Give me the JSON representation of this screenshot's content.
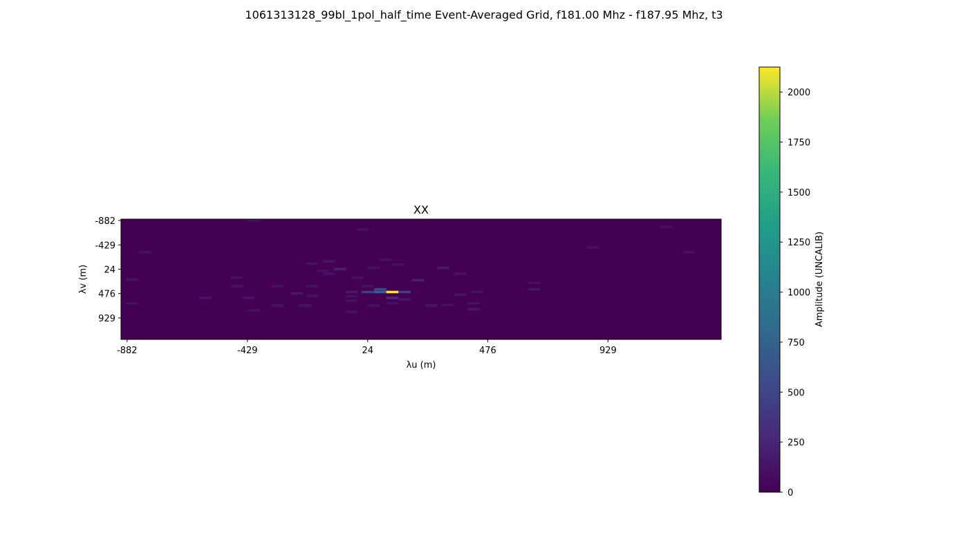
{
  "figure": {
    "title": "1061313128_99bl_1pol_half_time Event-Averaged Grid, f181.00 Mhz - f187.95 Mhz, t3"
  },
  "chart_data": {
    "type": "heatmap",
    "panel_title": "XX",
    "xlabel": "λu (m)",
    "ylabel": "λv (m)",
    "x_ticks": [
      "-882",
      "-429",
      "24",
      "476",
      "929"
    ],
    "x_tick_values": [
      -882,
      -429,
      24,
      476,
      929
    ],
    "y_ticks": [
      "-882",
      "-429",
      "24",
      "476",
      "929"
    ],
    "y_tick_values": [
      -882,
      -429,
      24,
      476,
      929
    ],
    "xlim": [
      -905,
      1355
    ],
    "ylim": [
      -882,
      1354
    ],
    "y_inverted": true,
    "background_value": 0,
    "colormap": "viridis",
    "colorbar": {
      "label": "Amplitude (UNCALIB)",
      "min": 0,
      "max": 2125,
      "ticks": [
        "0",
        "250",
        "500",
        "750",
        "1000",
        "1250",
        "1500",
        "1750",
        "2000"
      ],
      "tick_values": [
        0,
        250,
        500,
        750,
        1000,
        1250,
        1500,
        1750,
        2000
      ]
    },
    "cells": [
      {
        "u": -427,
        "v": -882,
        "w": 46,
        "h": 46,
        "value": 110
      },
      {
        "u": -17,
        "v": -710,
        "w": 46,
        "h": 46,
        "value": 110
      },
      {
        "u": 1125,
        "v": -760,
        "w": 46,
        "h": 46,
        "value": 110
      },
      {
        "u": -838,
        "v": -290,
        "w": 46,
        "h": 46,
        "value": 110
      },
      {
        "u": 849,
        "v": -380,
        "w": 46,
        "h": 46,
        "value": 110
      },
      {
        "u": 1211,
        "v": -290,
        "w": 46,
        "h": 46,
        "value": 110
      },
      {
        "u": -209,
        "v": -80,
        "w": 46,
        "h": 46,
        "value": 120
      },
      {
        "u": -145,
        "v": -120,
        "w": 46,
        "h": 46,
        "value": 130
      },
      {
        "u": -103,
        "v": 24,
        "w": 46,
        "h": 46,
        "value": 220
      },
      {
        "u": -168,
        "v": 60,
        "w": 46,
        "h": 46,
        "value": 110
      },
      {
        "u": -145,
        "v": 110,
        "w": 46,
        "h": 46,
        "value": 110
      },
      {
        "u": 24,
        "v": 0,
        "w": 46,
        "h": 46,
        "value": 120
      },
      {
        "u": 69,
        "v": -150,
        "w": 46,
        "h": 46,
        "value": 110
      },
      {
        "u": 115,
        "v": -60,
        "w": 46,
        "h": 46,
        "value": 110
      },
      {
        "u": 285,
        "v": 0,
        "w": 46,
        "h": 46,
        "value": 200
      },
      {
        "u": 350,
        "v": 110,
        "w": 46,
        "h": 46,
        "value": 120
      },
      {
        "u": -888,
        "v": 220,
        "w": 46,
        "h": 46,
        "value": 110
      },
      {
        "u": -493,
        "v": 180,
        "w": 46,
        "h": 46,
        "value": 110
      },
      {
        "u": -38,
        "v": 180,
        "w": 46,
        "h": 46,
        "value": 110
      },
      {
        "u": 190,
        "v": 230,
        "w": 46,
        "h": 46,
        "value": 220
      },
      {
        "u": -211,
        "v": 340,
        "w": 46,
        "h": 46,
        "value": 110
      },
      {
        "u": -338,
        "v": 340,
        "w": 46,
        "h": 46,
        "value": 110
      },
      {
        "u": -490,
        "v": 340,
        "w": 46,
        "h": 46,
        "value": 110
      },
      {
        "u": 627,
        "v": 280,
        "w": 46,
        "h": 46,
        "value": 110
      },
      {
        "u": 627,
        "v": 400,
        "w": 46,
        "h": 46,
        "value": 140
      },
      {
        "u": -265,
        "v": 476,
        "w": 46,
        "h": 46,
        "value": 160
      },
      {
        "u": -208,
        "v": 520,
        "w": 46,
        "h": 46,
        "value": 110
      },
      {
        "u": -60,
        "v": 450,
        "w": 46,
        "h": 46,
        "value": 160
      },
      {
        "u": -60,
        "v": 530,
        "w": 46,
        "h": 46,
        "value": 110
      },
      {
        "u": -60,
        "v": 610,
        "w": 46,
        "h": 46,
        "value": 110
      },
      {
        "u": 0,
        "v": 340,
        "w": 46,
        "h": 46,
        "value": 120
      },
      {
        "u": 0,
        "v": 450,
        "w": 60,
        "h": 46,
        "value": 430
      },
      {
        "u": 48,
        "v": 400,
        "w": 46,
        "h": 46,
        "value": 500
      },
      {
        "u": 48,
        "v": 450,
        "w": 46,
        "h": 46,
        "value": 700
      },
      {
        "u": 94,
        "v": 450,
        "w": 46,
        "h": 46,
        "value": 2125
      },
      {
        "u": 140,
        "v": 450,
        "w": 46,
        "h": 46,
        "value": 450
      },
      {
        "u": 94,
        "v": 560,
        "w": 46,
        "h": 46,
        "value": 280
      },
      {
        "u": 140,
        "v": 590,
        "w": 46,
        "h": 46,
        "value": 150
      },
      {
        "u": 94,
        "v": 660,
        "w": 46,
        "h": 46,
        "value": 110
      },
      {
        "u": 350,
        "v": 500,
        "w": 46,
        "h": 46,
        "value": 140
      },
      {
        "u": 413,
        "v": 450,
        "w": 46,
        "h": 46,
        "value": 110
      },
      {
        "u": -610,
        "v": 560,
        "w": 46,
        "h": 46,
        "value": 150
      },
      {
        "u": -448,
        "v": 560,
        "w": 46,
        "h": 46,
        "value": 150
      },
      {
        "u": -888,
        "v": 660,
        "w": 46,
        "h": 46,
        "value": 110
      },
      {
        "u": -338,
        "v": 700,
        "w": 46,
        "h": 46,
        "value": 130
      },
      {
        "u": -235,
        "v": 700,
        "w": 46,
        "h": 46,
        "value": 130
      },
      {
        "u": 24,
        "v": 700,
        "w": 46,
        "h": 46,
        "value": 110
      },
      {
        "u": -60,
        "v": 820,
        "w": 46,
        "h": 46,
        "value": 110
      },
      {
        "u": 240,
        "v": 700,
        "w": 46,
        "h": 46,
        "value": 130
      },
      {
        "u": 300,
        "v": 690,
        "w": 46,
        "h": 46,
        "value": 110
      },
      {
        "u": 399,
        "v": 660,
        "w": 46,
        "h": 46,
        "value": 110
      },
      {
        "u": 399,
        "v": 770,
        "w": 46,
        "h": 46,
        "value": 140
      },
      {
        "u": -427,
        "v": 790,
        "w": 46,
        "h": 46,
        "value": 110
      }
    ]
  }
}
